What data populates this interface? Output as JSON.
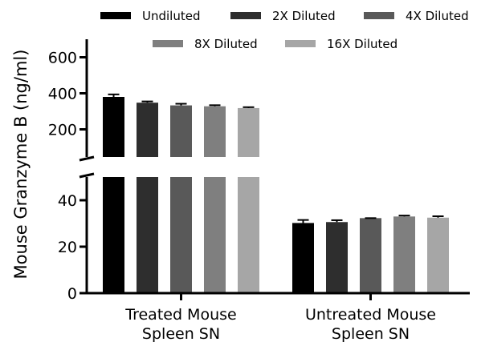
{
  "chart_data": {
    "type": "bar",
    "ylabel": "Mouse Granzyme B (ng/ml)",
    "categories": [
      [
        "Treated Mouse",
        "Spleen SN"
      ],
      [
        "Untreated Mouse",
        "Spleen SN"
      ]
    ],
    "series": [
      {
        "name": "Undiluted",
        "color": "#000000",
        "values": [
          380,
          30.2
        ],
        "errors": [
          14,
          1.3
        ]
      },
      {
        "name": "2X Diluted",
        "color": "#2e2e2e",
        "values": [
          348,
          30.6
        ],
        "errors": [
          7,
          0.8
        ]
      },
      {
        "name": "4X Diluted",
        "color": "#595959",
        "values": [
          333,
          32.3
        ],
        "errors": [
          9,
          0.0
        ]
      },
      {
        "name": "8X Diluted",
        "color": "#7f7f7f",
        "values": [
          328,
          33.0
        ],
        "errors": [
          6,
          0.4
        ]
      },
      {
        "name": "16X Diluted",
        "color": "#a6a6a6",
        "values": [
          318,
          32.5
        ],
        "errors": [
          5,
          0.6
        ]
      }
    ],
    "axis": {
      "segments": [
        {
          "range": [
            0,
            50
          ],
          "ticks": [
            0,
            20,
            40
          ]
        },
        {
          "range": [
            100,
            700
          ],
          "ticks": [
            200,
            400,
            600
          ]
        }
      ],
      "broken": true
    },
    "legend_position": "top",
    "grid": false
  }
}
